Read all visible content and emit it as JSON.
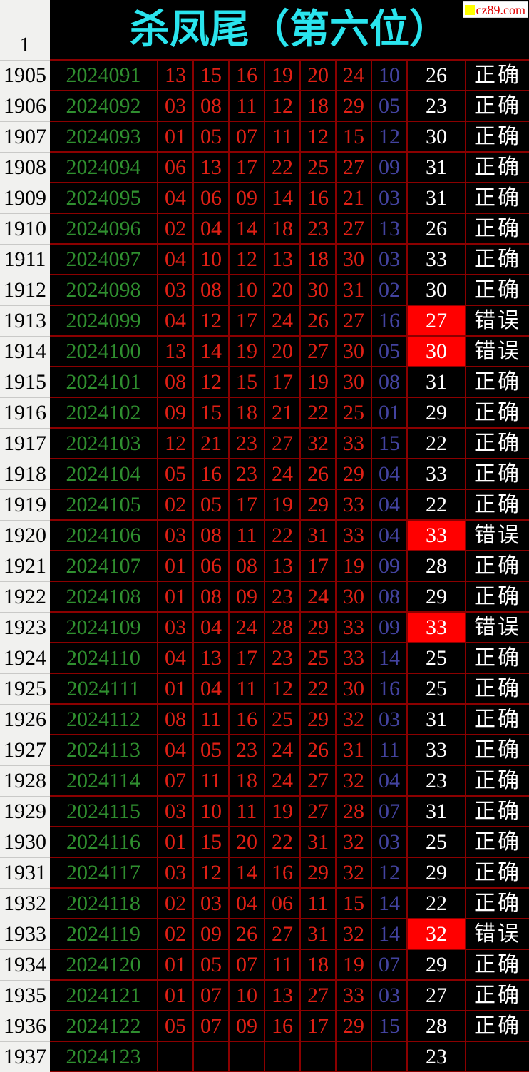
{
  "header": {
    "index_label": "1",
    "title": "杀凤尾（第六位）",
    "watermark": "cz89.com"
  },
  "colors": {
    "background": "#000000",
    "grid_border": "#8b0000",
    "label_column_bg": "#f1f1ef",
    "period_green": "#2f8f2f",
    "red_ball": "#e02015",
    "blue_ball": "#4343a0",
    "result_white": "#ffffff",
    "title_cyan": "#2ae4ee",
    "error_highlight": "#ff0000",
    "watermark_red": "#e00000",
    "watermark_yellow": "#ffff00"
  },
  "status_labels": {
    "correct": "正确",
    "wrong": "错误"
  },
  "table": {
    "rows": [
      {
        "seq": "1905",
        "period": "2024091",
        "reds": [
          "13",
          "15",
          "16",
          "19",
          "20",
          "24"
        ],
        "blue": "10",
        "result": "26",
        "status": "正确",
        "highlight": false
      },
      {
        "seq": "1906",
        "period": "2024092",
        "reds": [
          "03",
          "08",
          "11",
          "12",
          "18",
          "29"
        ],
        "blue": "05",
        "result": "23",
        "status": "正确",
        "highlight": false
      },
      {
        "seq": "1907",
        "period": "2024093",
        "reds": [
          "01",
          "05",
          "07",
          "11",
          "12",
          "15"
        ],
        "blue": "12",
        "result": "30",
        "status": "正确",
        "highlight": false
      },
      {
        "seq": "1908",
        "period": "2024094",
        "reds": [
          "06",
          "13",
          "17",
          "22",
          "25",
          "27"
        ],
        "blue": "09",
        "result": "31",
        "status": "正确",
        "highlight": false
      },
      {
        "seq": "1909",
        "period": "2024095",
        "reds": [
          "04",
          "06",
          "09",
          "14",
          "16",
          "21"
        ],
        "blue": "03",
        "result": "31",
        "status": "正确",
        "highlight": false
      },
      {
        "seq": "1910",
        "period": "2024096",
        "reds": [
          "02",
          "04",
          "14",
          "18",
          "23",
          "27"
        ],
        "blue": "13",
        "result": "26",
        "status": "正确",
        "highlight": false
      },
      {
        "seq": "1911",
        "period": "2024097",
        "reds": [
          "04",
          "10",
          "12",
          "13",
          "18",
          "30"
        ],
        "blue": "03",
        "result": "33",
        "status": "正确",
        "highlight": false
      },
      {
        "seq": "1912",
        "period": "2024098",
        "reds": [
          "03",
          "08",
          "10",
          "20",
          "30",
          "31"
        ],
        "blue": "02",
        "result": "30",
        "status": "正确",
        "highlight": false
      },
      {
        "seq": "1913",
        "period": "2024099",
        "reds": [
          "04",
          "12",
          "17",
          "24",
          "26",
          "27"
        ],
        "blue": "16",
        "result": "27",
        "status": "错误",
        "highlight": true
      },
      {
        "seq": "1914",
        "period": "2024100",
        "reds": [
          "13",
          "14",
          "19",
          "20",
          "27",
          "30"
        ],
        "blue": "05",
        "result": "30",
        "status": "错误",
        "highlight": true
      },
      {
        "seq": "1915",
        "period": "2024101",
        "reds": [
          "08",
          "12",
          "15",
          "17",
          "19",
          "30"
        ],
        "blue": "08",
        "result": "31",
        "status": "正确",
        "highlight": false
      },
      {
        "seq": "1916",
        "period": "2024102",
        "reds": [
          "09",
          "15",
          "18",
          "21",
          "22",
          "25"
        ],
        "blue": "01",
        "result": "29",
        "status": "正确",
        "highlight": false
      },
      {
        "seq": "1917",
        "period": "2024103",
        "reds": [
          "12",
          "21",
          "23",
          "27",
          "32",
          "33"
        ],
        "blue": "15",
        "result": "22",
        "status": "正确",
        "highlight": false
      },
      {
        "seq": "1918",
        "period": "2024104",
        "reds": [
          "05",
          "16",
          "23",
          "24",
          "26",
          "29"
        ],
        "blue": "04",
        "result": "33",
        "status": "正确",
        "highlight": false
      },
      {
        "seq": "1919",
        "period": "2024105",
        "reds": [
          "02",
          "05",
          "17",
          "19",
          "29",
          "33"
        ],
        "blue": "04",
        "result": "22",
        "status": "正确",
        "highlight": false
      },
      {
        "seq": "1920",
        "period": "2024106",
        "reds": [
          "03",
          "08",
          "11",
          "22",
          "31",
          "33"
        ],
        "blue": "04",
        "result": "33",
        "status": "错误",
        "highlight": true
      },
      {
        "seq": "1921",
        "period": "2024107",
        "reds": [
          "01",
          "06",
          "08",
          "13",
          "17",
          "19"
        ],
        "blue": "09",
        "result": "28",
        "status": "正确",
        "highlight": false
      },
      {
        "seq": "1922",
        "period": "2024108",
        "reds": [
          "01",
          "08",
          "09",
          "23",
          "24",
          "30"
        ],
        "blue": "08",
        "result": "29",
        "status": "正确",
        "highlight": false
      },
      {
        "seq": "1923",
        "period": "2024109",
        "reds": [
          "03",
          "04",
          "24",
          "28",
          "29",
          "33"
        ],
        "blue": "09",
        "result": "33",
        "status": "错误",
        "highlight": true
      },
      {
        "seq": "1924",
        "period": "2024110",
        "reds": [
          "04",
          "13",
          "17",
          "23",
          "25",
          "33"
        ],
        "blue": "14",
        "result": "25",
        "status": "正确",
        "highlight": false
      },
      {
        "seq": "1925",
        "period": "2024111",
        "reds": [
          "01",
          "04",
          "11",
          "12",
          "22",
          "30"
        ],
        "blue": "16",
        "result": "25",
        "status": "正确",
        "highlight": false
      },
      {
        "seq": "1926",
        "period": "2024112",
        "reds": [
          "08",
          "11",
          "16",
          "25",
          "29",
          "32"
        ],
        "blue": "03",
        "result": "31",
        "status": "正确",
        "highlight": false
      },
      {
        "seq": "1927",
        "period": "2024113",
        "reds": [
          "04",
          "05",
          "23",
          "24",
          "26",
          "31"
        ],
        "blue": "11",
        "result": "33",
        "status": "正确",
        "highlight": false
      },
      {
        "seq": "1928",
        "period": "2024114",
        "reds": [
          "07",
          "11",
          "18",
          "24",
          "27",
          "32"
        ],
        "blue": "04",
        "result": "23",
        "status": "正确",
        "highlight": false
      },
      {
        "seq": "1929",
        "period": "2024115",
        "reds": [
          "03",
          "10",
          "11",
          "19",
          "27",
          "28"
        ],
        "blue": "07",
        "result": "31",
        "status": "正确",
        "highlight": false
      },
      {
        "seq": "1930",
        "period": "2024116",
        "reds": [
          "01",
          "15",
          "20",
          "22",
          "31",
          "32"
        ],
        "blue": "03",
        "result": "25",
        "status": "正确",
        "highlight": false
      },
      {
        "seq": "1931",
        "period": "2024117",
        "reds": [
          "03",
          "12",
          "14",
          "16",
          "29",
          "32"
        ],
        "blue": "12",
        "result": "29",
        "status": "正确",
        "highlight": false
      },
      {
        "seq": "1932",
        "period": "2024118",
        "reds": [
          "02",
          "03",
          "04",
          "06",
          "11",
          "15"
        ],
        "blue": "14",
        "result": "22",
        "status": "正确",
        "highlight": false
      },
      {
        "seq": "1933",
        "period": "2024119",
        "reds": [
          "02",
          "09",
          "26",
          "27",
          "31",
          "32"
        ],
        "blue": "14",
        "result": "32",
        "status": "错误",
        "highlight": true
      },
      {
        "seq": "1934",
        "period": "2024120",
        "reds": [
          "01",
          "05",
          "07",
          "11",
          "18",
          "19"
        ],
        "blue": "07",
        "result": "29",
        "status": "正确",
        "highlight": false
      },
      {
        "seq": "1935",
        "period": "2024121",
        "reds": [
          "01",
          "07",
          "10",
          "13",
          "27",
          "33"
        ],
        "blue": "03",
        "result": "27",
        "status": "正确",
        "highlight": false
      },
      {
        "seq": "1936",
        "period": "2024122",
        "reds": [
          "05",
          "07",
          "09",
          "16",
          "17",
          "29"
        ],
        "blue": "15",
        "result": "28",
        "status": "正确",
        "highlight": false
      },
      {
        "seq": "1937",
        "period": "2024123",
        "reds": [
          "",
          "",
          "",
          "",
          "",
          ""
        ],
        "blue": "",
        "result": "23",
        "status": "",
        "highlight": false
      }
    ]
  }
}
